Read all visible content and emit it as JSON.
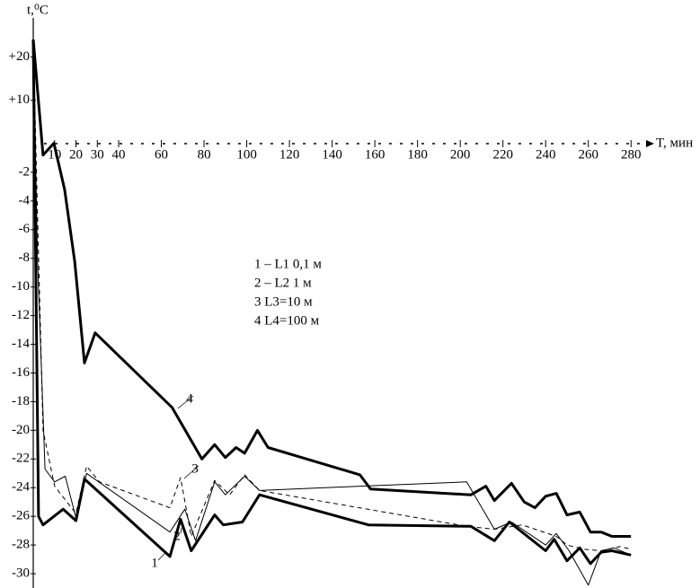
{
  "chart_data": {
    "type": "line",
    "ylabel": "t,⁰C",
    "xlabel": "T, мин",
    "xlim": [
      0,
      290
    ],
    "ylim": [
      -31,
      29
    ],
    "xticks": [
      10,
      20,
      30,
      40,
      60,
      80,
      100,
      120,
      140,
      160,
      180,
      200,
      220,
      240,
      260,
      280
    ],
    "yticks": [
      {
        "value": 20,
        "label": "+20"
      },
      {
        "value": 10,
        "label": "+10"
      },
      -2,
      -4,
      -6,
      -8,
      -10,
      -12,
      -14,
      -16,
      -18,
      -20,
      -22,
      -24,
      -26,
      -28,
      -30
    ],
    "series": [
      {
        "name": "1 – L1  0,1 м",
        "color": "#000000",
        "style": "thick",
        "x": [
          0,
          2.5,
          4.6,
          14,
          20,
          24,
          64,
          69,
          74,
          85,
          89,
          98,
          106,
          157,
          205,
          216,
          223,
          240,
          244,
          250,
          256,
          261,
          266,
          271,
          280
        ],
        "values": [
          24,
          -26,
          -26.6,
          -25.5,
          -26.3,
          -23.4,
          -28.8,
          -26.2,
          -28.4,
          -25.9,
          -26.6,
          -26.4,
          -24.5,
          -26.6,
          -26.7,
          -27.7,
          -26.4,
          -28.4,
          -27.6,
          -29.1,
          -28.2,
          -29.3,
          -28.5,
          -28.4,
          -28.7
        ]
      },
      {
        "name": "2 – L2  1 м",
        "color": "#000000",
        "style": "thin",
        "x": [
          0,
          2,
          5.5,
          10,
          15,
          20,
          25,
          64,
          71,
          76,
          85,
          90,
          99,
          106,
          153,
          203,
          216,
          224,
          240,
          245,
          251,
          260,
          266,
          272,
          280
        ],
        "values": [
          24,
          -8.2,
          -22.7,
          -23.6,
          -23.2,
          -26.1,
          -23,
          -27.1,
          -25.5,
          -27.7,
          -23.6,
          -24.5,
          -23.2,
          -24.2,
          -23.9,
          -23.6,
          -26.9,
          -26.4,
          -28,
          -27.2,
          -28.4,
          -30.8,
          -28.4,
          -28.2,
          -28.7
        ]
      },
      {
        "name": "3   L3=10 м",
        "color": "#000000",
        "style": "dashed",
        "x": [
          0,
          2,
          4.6,
          10,
          20,
          25,
          31,
          64,
          69,
          74,
          85,
          92,
          99,
          106,
          203,
          216,
          229,
          245,
          250,
          258,
          266,
          275,
          280
        ],
        "values": [
          24,
          -5.1,
          -20,
          -23.9,
          -25.8,
          -22.5,
          -23.6,
          -25.4,
          -23.3,
          -27.4,
          -23.5,
          -24.5,
          -23.1,
          -24.2,
          -26.7,
          -26.9,
          -26.6,
          -27.4,
          -28,
          -28.3,
          -28.4,
          -28.1,
          -28.3
        ]
      },
      {
        "name": "4   L4=100 м",
        "color": "#000000",
        "style": "thick",
        "x": [
          0,
          4.6,
          9.7,
          14.7,
          19.4,
          24,
          29,
          65,
          79,
          85,
          90,
          95,
          99,
          105,
          110,
          153,
          158,
          205,
          212,
          216,
          224,
          230,
          235,
          240,
          245,
          250,
          256,
          261,
          266,
          271,
          280
        ],
        "values": [
          24,
          -0.8,
          0.1,
          -3.2,
          -8.2,
          -15.3,
          -13.2,
          -18.4,
          -22,
          -21,
          -21.9,
          -21.2,
          -21.6,
          -20,
          -21.2,
          -23.1,
          -24.1,
          -24.5,
          -23.9,
          -24.9,
          -23.7,
          -25,
          -25.4,
          -24.6,
          -24.4,
          -25.9,
          -25.7,
          -27.1,
          -27.1,
          -27.4,
          -27.4
        ]
      }
    ],
    "curve_labels": [
      "1",
      "2",
      "3",
      "4"
    ]
  }
}
